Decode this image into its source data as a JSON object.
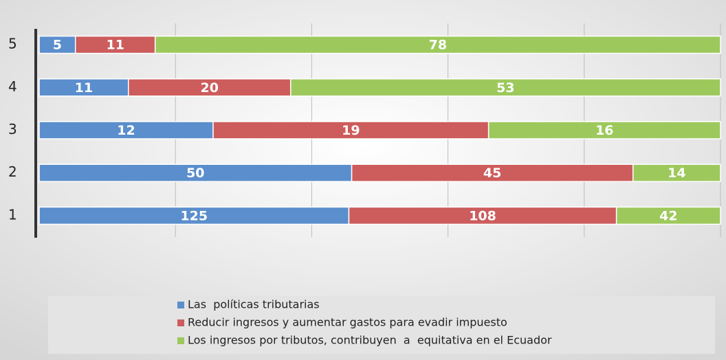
{
  "chart_data": {
    "type": "bar",
    "orientation": "horizontal",
    "stacking": "percent",
    "categories": [
      "1",
      "2",
      "3",
      "4",
      "5"
    ],
    "series": [
      {
        "name": "Las  políticas tributarias",
        "color": "#5b8ecc",
        "values": [
          125,
          50,
          12,
          11,
          5
        ]
      },
      {
        "name": "Reducir ingresos y aumentar gastos para evadir impuesto",
        "color": "#cd5c5c",
        "values": [
          108,
          45,
          19,
          20,
          11
        ]
      },
      {
        "name": "Los ingresos por tributos, contribuyen  a  equitativa en el Ecuador",
        "color": "#9dc95c",
        "values": [
          42,
          14,
          16,
          53,
          78
        ]
      }
    ],
    "xlim": [
      0,
      100
    ],
    "xticks": [
      20,
      40,
      60,
      80,
      100
    ],
    "grid": true,
    "legend": "bottom"
  }
}
